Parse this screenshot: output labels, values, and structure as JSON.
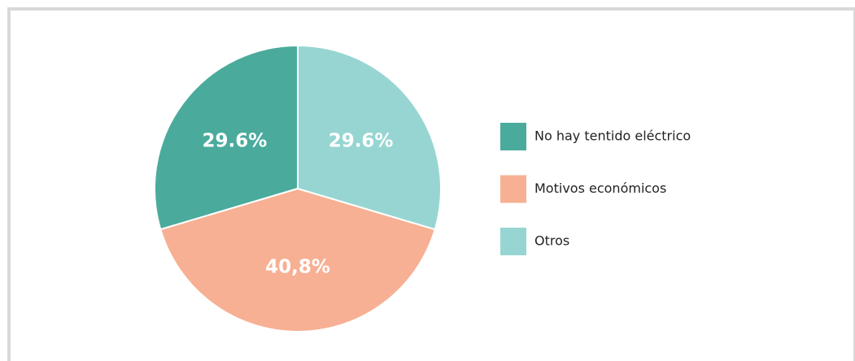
{
  "chart_data": {
    "type": "pie",
    "categories": [
      "No hay tentido eléctrico",
      "Motivos económicos",
      "Otros"
    ],
    "values": [
      29.6,
      40.8,
      29.6
    ],
    "value_labels": [
      "29.6%",
      "40,8%",
      "29.6%"
    ],
    "colors": [
      "#4aab9c",
      "#f7b093",
      "#97d5d2"
    ]
  }
}
